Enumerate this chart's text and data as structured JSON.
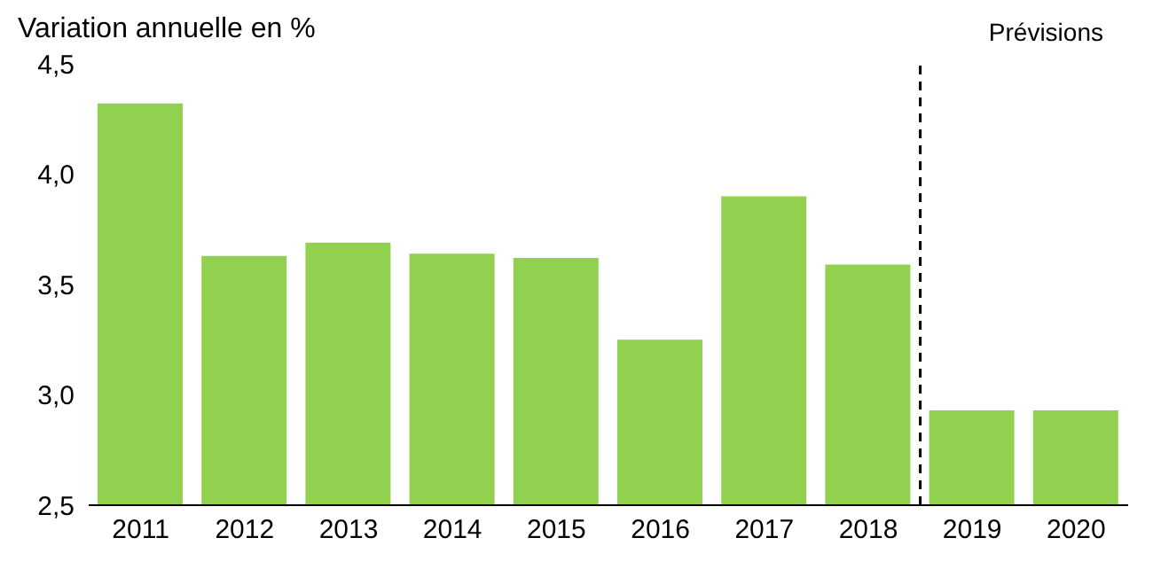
{
  "chart_data": {
    "type": "bar",
    "title": "Variation annuelle en %",
    "x": [
      2011,
      2012,
      2013,
      2014,
      2015,
      2016,
      2017,
      2018,
      2019,
      2020
    ],
    "values": [
      4.32,
      3.63,
      3.69,
      3.64,
      3.62,
      3.25,
      3.9,
      3.59,
      2.93,
      2.93
    ],
    "color": "#92d050",
    "xlim": [
      2010.5,
      2020.5
    ],
    "xticks": [
      2011,
      2012,
      2013,
      2014,
      2015,
      2016,
      2017,
      2018,
      2019,
      2020
    ],
    "ylim": [
      2.5,
      4.5
    ],
    "yticks": [
      {
        "value": 2.5,
        "label": "2,5"
      },
      {
        "value": 3,
        "label": "3,0"
      },
      {
        "value": 3.5,
        "label": "3,5"
      },
      {
        "value": 4,
        "label": "4,0"
      },
      {
        "value": 4.5,
        "label": "4,5"
      }
    ],
    "ref_lines": [
      {
        "axis": "x",
        "value": 2018.5,
        "color": "#000000",
        "line_style": "dashed"
      }
    ],
    "annotations": [
      "Prévisions"
    ],
    "grid": false
  }
}
